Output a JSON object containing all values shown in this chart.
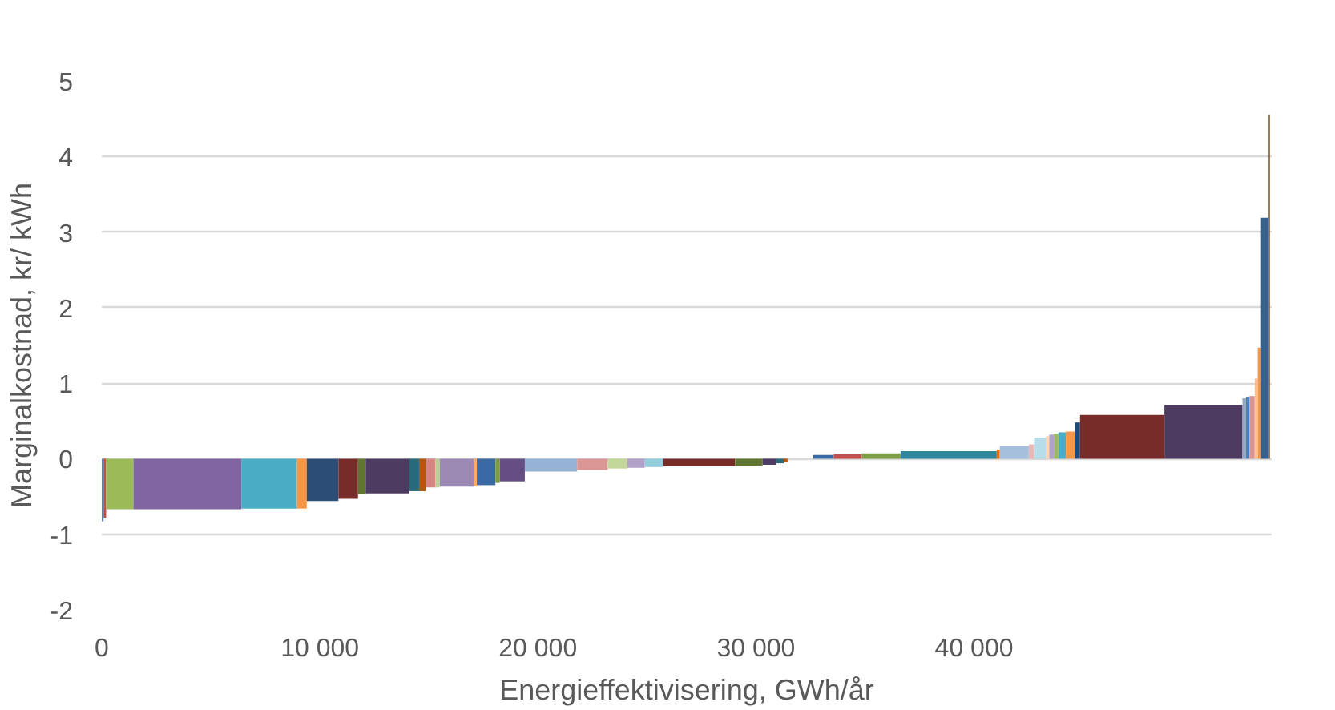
{
  "chart_data": {
    "type": "histogram",
    "xlabel": "Energieffektivisering, GWh/år",
    "ylabel": "Marginalkostnad, kr/ kWh",
    "bins": [
      0,
      80,
      200,
      1450,
      6400,
      8950,
      9400,
      10850,
      11750,
      12100,
      14100,
      14550,
      14850,
      15300,
      15500,
      17050,
      17200,
      18050,
      18250,
      19400,
      21800,
      23200,
      24100,
      24900,
      25750,
      29040,
      30300,
      30930,
      31270,
      31450,
      32630,
      33570,
      34850,
      36630,
      41040,
      41180,
      42510,
      42750,
      43290,
      43450,
      43660,
      43870,
      44210,
      44630,
      44860,
      48730,
      52310,
      52470,
      52630,
      52870,
      53010,
      53160,
      53510,
      53570
    ],
    "values": [
      -0.83,
      -0.78,
      -0.67,
      -0.67,
      -0.66,
      -0.66,
      -0.56,
      -0.53,
      -0.47,
      -0.46,
      -0.43,
      -0.43,
      -0.38,
      -0.38,
      -0.37,
      -0.36,
      -0.35,
      -0.32,
      -0.3,
      -0.17,
      -0.15,
      -0.13,
      -0.12,
      -0.11,
      -0.1,
      -0.09,
      -0.08,
      -0.06,
      -0.04,
      0,
      0.05,
      0.06,
      0.07,
      0.1,
      0.12,
      0.17,
      0.19,
      0.28,
      0.3,
      0.32,
      0.33,
      0.35,
      0.36,
      0.48,
      0.58,
      0.71,
      0.8,
      0.81,
      0.83,
      1.06,
      1.47,
      3.19,
      4.55
    ],
    "colors": [
      "#4f81bd",
      "#c0504d",
      "#9bbb59",
      "#8064a2",
      "#4bacc6",
      "#f79646",
      "#2c4d75",
      "#772c2a",
      "#5f7530",
      "#4d3b62",
      "#276a7c",
      "#b65708",
      "#d68584",
      "#b9cd96",
      "#9c8ab5",
      "#f9ab6d",
      "#3a6aa3",
      "#7e9b48",
      "#654f82",
      "#95b3d7",
      "#da9694",
      "#c4d79b",
      "#b1a0c7",
      "#92cddc",
      "#772c2a",
      "#5f7530",
      "#4d3b62",
      "#276a7c",
      "#b65708",
      "#a5a5a5",
      "#3a6aa3",
      "#c0504d",
      "#7e9b48",
      "#31859c",
      "#e46c0a",
      "#a6bfdd",
      "#e6b9b8",
      "#b7dee8",
      "#fcd5b4",
      "#b1a0c7",
      "#9bbb59",
      "#4bacc6",
      "#f79646",
      "#1f497d",
      "#772c2a",
      "#4d3b62",
      "#8ea9c1",
      "#4f81bd",
      "#da9694",
      "#fabf8f",
      "#f79646",
      "#376092",
      "#7f5f2f"
    ],
    "xlim": [
      0,
      53650
    ],
    "ylim": [
      -2,
      5
    ],
    "xticks": [
      0,
      {
        "value": 10000,
        "label": "10 000"
      },
      {
        "value": 20000,
        "label": "20 000"
      },
      {
        "value": 30000,
        "label": "30 000"
      },
      {
        "value": 40000,
        "label": "40 000"
      }
    ],
    "yticks": [
      -2,
      -1,
      0,
      1,
      2,
      3,
      4,
      5
    ],
    "grid": "y"
  }
}
